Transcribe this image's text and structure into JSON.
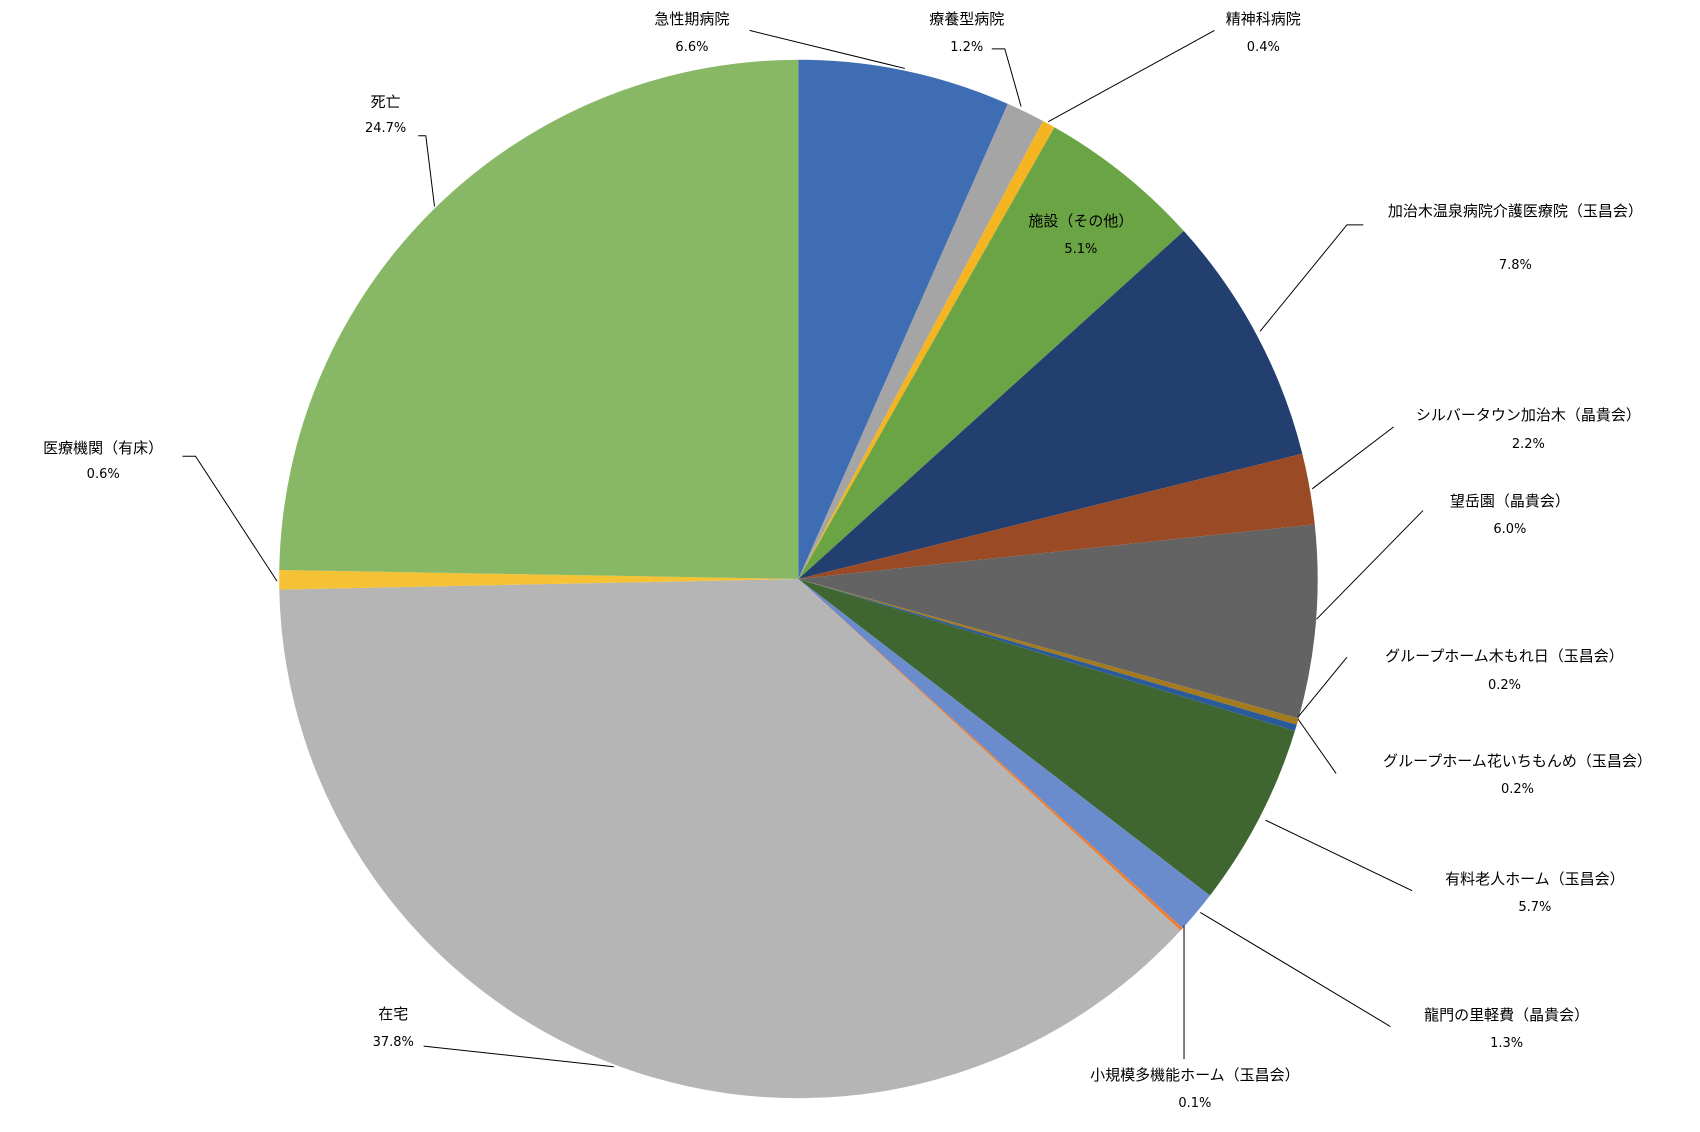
{
  "chart_data": {
    "type": "pie",
    "categories": [
      "急性期病院",
      "療養型病院",
      "精神科病院",
      "施設（その他）",
      "加治木温泉病院介護医療院（玉昌会）",
      "シルバータウン加治木（晶貴会）",
      "望岳園（晶貴会）",
      "グループホーム木もれ日（玉昌会）",
      "グループホーム花いちもんめ（玉昌会）",
      "有料老人ホーム（玉昌会）",
      "龍門の里軽費（晶貴会）",
      "小規模多機能ホーム（玉昌会）",
      "在宅",
      "医療機関（有床）",
      "死亡"
    ],
    "values": [
      6.6,
      1.2,
      0.4,
      5.1,
      7.8,
      2.2,
      6.0,
      0.2,
      0.2,
      5.7,
      1.3,
      0.1,
      37.8,
      0.6,
      24.7
    ],
    "value_labels": [
      "6.6%",
      "1.2%",
      "0.4%",
      "5.1%",
      "7.8%",
      "2.2%",
      "6.0%",
      "0.2%",
      "0.2%",
      "5.7%",
      "1.3%",
      "0.1%",
      "37.8%",
      "0.6%",
      "24.7%"
    ],
    "colors": [
      "#3f6db3",
      "#a5a5a5",
      "#f5b520",
      "#6aa444",
      "#223f70",
      "#9a4a24",
      "#636363",
      "#a47a1e",
      "#2a5a9a",
      "#3f6630",
      "#6a8ccc",
      "#ed7d31",
      "#b5b5b5",
      "#f4c234",
      "#88b866"
    ]
  }
}
